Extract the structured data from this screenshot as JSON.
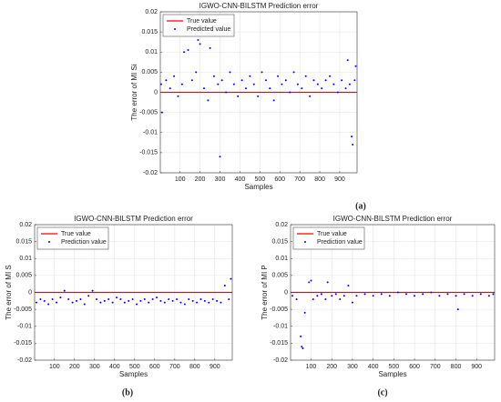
{
  "chart_data": [
    {
      "type": "scatter",
      "title": "IGWO-CNN-BILSTM Prediction error",
      "xlabel": "Samples",
      "ylabel": "The error of MI Si",
      "panel_label": "(a)",
      "xlim": [
        1,
        987
      ],
      "ylim": [
        -0.02,
        0.02
      ],
      "xticks": [
        100,
        200,
        300,
        400,
        500,
        600,
        700,
        800,
        900
      ],
      "yticks": [
        -0.02,
        -0.015,
        -0.01,
        -0.005,
        0,
        0.005,
        0.01,
        0.015,
        0.02
      ],
      "grid": true,
      "legend": "upper left",
      "series": [
        {
          "name": "True value",
          "color": "#ff0000",
          "style": "line",
          "x": [
            1,
            987
          ],
          "values": [
            0,
            0
          ]
        },
        {
          "name": "Predicted value",
          "color": "#0000ff",
          "style": "marker",
          "x": [
            5,
            10,
            30,
            50,
            70,
            90,
            110,
            120,
            140,
            160,
            180,
            190,
            200,
            220,
            240,
            250,
            270,
            290,
            300,
            310,
            330,
            350,
            370,
            390,
            410,
            430,
            450,
            470,
            490,
            510,
            530,
            550,
            570,
            590,
            610,
            630,
            650,
            670,
            690,
            710,
            730,
            750,
            770,
            790,
            810,
            830,
            850,
            870,
            890,
            910,
            930,
            940,
            950,
            960,
            965,
            975,
            980
          ],
          "values": [
            0.002,
            -0.005,
            0.003,
            0.001,
            0.004,
            -0.001,
            0.002,
            0.01,
            0.0105,
            0.003,
            0.005,
            0.013,
            0.012,
            0.001,
            -0.002,
            0.011,
            0.004,
            0.002,
            -0.016,
            0.003,
            0.0,
            0.005,
            0.002,
            -0.001,
            0.003,
            0.001,
            0.004,
            0.002,
            -0.001,
            0.005,
            0.003,
            0.001,
            -0.002,
            0.004,
            0.002,
            0.003,
            0.0,
            0.005,
            0.002,
            0.001,
            0.004,
            -0.001,
            0.003,
            0.002,
            0.001,
            0.003,
            0.004,
            0.002,
            0.0,
            0.003,
            0.001,
            0.008,
            0.002,
            -0.011,
            -0.013,
            0.003,
            0.0065
          ]
        }
      ]
    },
    {
      "type": "scatter",
      "title": "IGWO-CNN-BILSTM Prediction error",
      "xlabel": "Samples",
      "ylabel": "The error of MI S",
      "panel_label": "(b)",
      "xlim": [
        1,
        987
      ],
      "ylim": [
        -0.02,
        0.02
      ],
      "xticks": [
        100,
        200,
        300,
        400,
        500,
        600,
        700,
        800,
        900
      ],
      "yticks": [
        -0.02,
        -0.015,
        -0.01,
        -0.005,
        0,
        0.005,
        0.01,
        0.015,
        0.02
      ],
      "grid": true,
      "legend": "upper left",
      "series": [
        {
          "name": "True value",
          "color": "#ff0000",
          "style": "line",
          "x": [
            1,
            987
          ],
          "values": [
            0,
            0
          ]
        },
        {
          "name": "Prediction value",
          "color": "#0000ff",
          "style": "marker",
          "x": [
            10,
            30,
            50,
            70,
            90,
            110,
            130,
            150,
            170,
            190,
            210,
            230,
            250,
            270,
            290,
            310,
            330,
            350,
            370,
            390,
            410,
            430,
            450,
            470,
            490,
            510,
            530,
            550,
            570,
            590,
            610,
            630,
            650,
            670,
            690,
            710,
            730,
            750,
            770,
            790,
            810,
            830,
            850,
            870,
            890,
            910,
            930,
            950,
            970,
            980
          ],
          "values": [
            -0.003,
            -0.002,
            -0.0025,
            -0.0035,
            -0.002,
            -0.003,
            -0.0015,
            0.0005,
            -0.002,
            -0.003,
            -0.0025,
            -0.002,
            -0.0035,
            -0.001,
            0.0005,
            -0.002,
            -0.003,
            -0.0025,
            -0.002,
            -0.003,
            -0.0015,
            -0.002,
            -0.003,
            -0.0025,
            -0.002,
            -0.0035,
            -0.0025,
            -0.002,
            -0.003,
            -0.002,
            -0.0015,
            -0.0025,
            -0.003,
            -0.002,
            -0.0025,
            -0.002,
            -0.003,
            -0.0035,
            -0.002,
            -0.0025,
            -0.003,
            -0.002,
            -0.0025,
            -0.003,
            -0.002,
            -0.0025,
            -0.003,
            0.002,
            -0.002,
            0.004
          ]
        }
      ]
    },
    {
      "type": "scatter",
      "title": "IGWO-CNN-BILSTM Prediction error",
      "xlabel": "Samples",
      "ylabel": "The error of MI P",
      "panel_label": "(c)",
      "xlim": [
        1,
        987
      ],
      "ylim": [
        -0.02,
        0.02
      ],
      "xticks": [
        100,
        200,
        300,
        400,
        500,
        600,
        700,
        800,
        900
      ],
      "yticks": [
        -0.02,
        -0.015,
        -0.01,
        -0.005,
        0,
        0.005,
        0.01,
        0.015,
        0.02
      ],
      "grid": true,
      "legend": "upper left",
      "series": [
        {
          "name": "True value",
          "color": "#ff0000",
          "style": "line",
          "x": [
            1,
            987
          ],
          "values": [
            0,
            0
          ]
        },
        {
          "name": "Prediction value",
          "color": "#0000ff",
          "style": "marker",
          "x": [
            10,
            30,
            50,
            55,
            60,
            70,
            90,
            100,
            110,
            130,
            150,
            170,
            180,
            200,
            220,
            240,
            260,
            280,
            300,
            320,
            360,
            400,
            440,
            480,
            520,
            560,
            600,
            640,
            680,
            720,
            760,
            800,
            810,
            840,
            880,
            920,
            960,
            980
          ],
          "values": [
            -0.001,
            -0.002,
            -0.013,
            -0.016,
            -0.0165,
            -0.006,
            0.003,
            0.0035,
            -0.002,
            -0.001,
            -0.0005,
            -0.002,
            0.003,
            -0.001,
            -0.0005,
            -0.002,
            -0.001,
            0.002,
            -0.003,
            -0.001,
            -0.0005,
            -0.001,
            -0.0005,
            -0.001,
            0.0,
            -0.0005,
            -0.001,
            -0.0005,
            0.0,
            -0.001,
            -0.0005,
            -0.001,
            -0.005,
            -0.0005,
            -0.001,
            -0.0005,
            -0.001,
            -0.0005
          ]
        }
      ]
    }
  ]
}
